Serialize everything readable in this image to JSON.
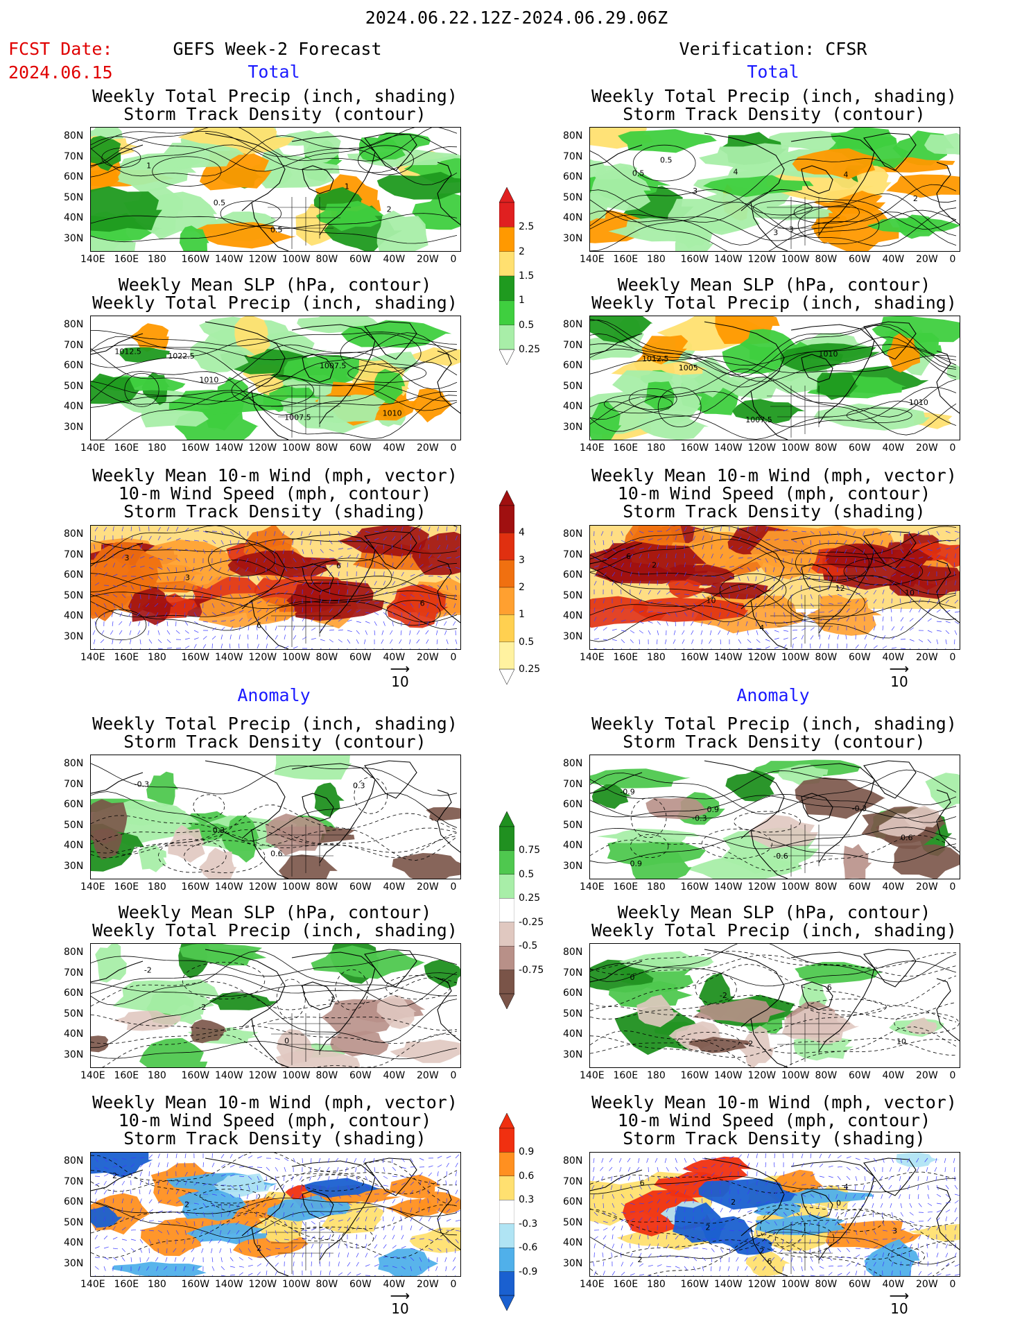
{
  "header": {
    "date_range": "2024.06.22.12Z-2024.06.29.06Z",
    "fcst_label": "FCST Date:",
    "fcst_date": "2024.06.15",
    "left_title": "GEFS Week-2 Forecast",
    "right_title": "Verification: CFSR"
  },
  "sections": {
    "total": "Total",
    "anomaly": "Anomaly"
  },
  "panel_titles": {
    "precip": [
      "Weekly Total Precip (inch, shading)",
      "Storm Track Density (contour)"
    ],
    "slp": [
      "Weekly Mean SLP (hPa, contour)",
      "Weekly Total Precip (inch, shading)"
    ],
    "wind": [
      "Weekly Mean 10-m Wind (mph, vector)",
      "10-m Wind Speed (mph, contour)",
      "Storm Track Density (shading)"
    ]
  },
  "axes": {
    "lat_labels": [
      "80N",
      "70N",
      "60N",
      "50N",
      "40N",
      "30N"
    ],
    "lon_labels": [
      "140E",
      "160E",
      "180",
      "160W",
      "140W",
      "120W",
      "100W",
      "80W",
      "60W",
      "40W",
      "20W",
      "0"
    ]
  },
  "vector_ref": "10",
  "colorbars": {
    "precip_total": {
      "labels": [
        "2.5",
        "2",
        "1.5",
        "1",
        "0.5",
        "0.25"
      ],
      "colors": [
        "#e02020",
        "#ff9900",
        "#ffe070",
        "#1f9a1f",
        "#3fcf3f",
        "#a8eea8"
      ]
    },
    "storm_total": {
      "labels": [
        "4",
        "3",
        "2",
        "1",
        "0.5",
        "0.25"
      ],
      "colors": [
        "#a01010",
        "#e03010",
        "#f07010",
        "#ffa030",
        "#ffd050",
        "#fff2a0"
      ]
    },
    "precip_anom": {
      "labels": [
        "0.75",
        "0.5",
        "0.25",
        "-0.25",
        "-0.5",
        "-0.75"
      ],
      "colors": [
        "#209020",
        "#4fc84f",
        "#a8eea8",
        "#ffffff",
        "#e0c8c0",
        "#b89088",
        "#7a5448"
      ]
    },
    "storm_anom": {
      "labels": [
        "0.9",
        "0.6",
        "0.3",
        "-0.3",
        "-0.6",
        "-0.9"
      ],
      "colors": [
        "#f03010",
        "#ff9020",
        "#ffe070",
        "#ffffff",
        "#b0e4f4",
        "#50b0ea",
        "#1a60d0"
      ]
    }
  },
  "contour_labels": {
    "gefs_total_precip": [
      "1",
      "0.5",
      "0.5",
      "1",
      "2"
    ],
    "cfsr_total_precip": [
      "0.5",
      "3",
      "3",
      "4",
      "2",
      "0.5",
      "4",
      "3"
    ],
    "gefs_total_slp": [
      "1012.5",
      "1010",
      "1007.5",
      "1007.5",
      "1010",
      "1022.5"
    ],
    "cfsr_total_slp": [
      "1012.5",
      "1005",
      "1007.5",
      "1010",
      "1010"
    ],
    "gefs_total_wind": [
      "3",
      "3",
      "6",
      "6",
      "6"
    ],
    "cfsr_total_wind": [
      "2",
      "10",
      "4",
      "12",
      "10",
      "6"
    ],
    "gefs_anom_precip": [
      "-0.3",
      "0.3",
      "0.6",
      "0.3"
    ],
    "cfsr_anom_precip": [
      "-0.9",
      "-0.3",
      "-0.6",
      "-0.3",
      "0.6",
      "0.9",
      "0.9"
    ],
    "gefs_anom_slp": [
      "-2",
      "-2",
      "0",
      "-2"
    ],
    "cfsr_anom_slp": [
      "0",
      "-2",
      "-2",
      "6",
      "10"
    ],
    "gefs_anom_wind": [
      "2",
      "2",
      "2"
    ],
    "cfsr_anom_wind": [
      "6",
      "2",
      "2",
      "4",
      "3",
      "2",
      "2",
      "6",
      "0"
    ]
  },
  "colors": {
    "title_red": "#e00000",
    "section_blue": "#1a1aff",
    "vector_blue": "#3a3aff"
  }
}
